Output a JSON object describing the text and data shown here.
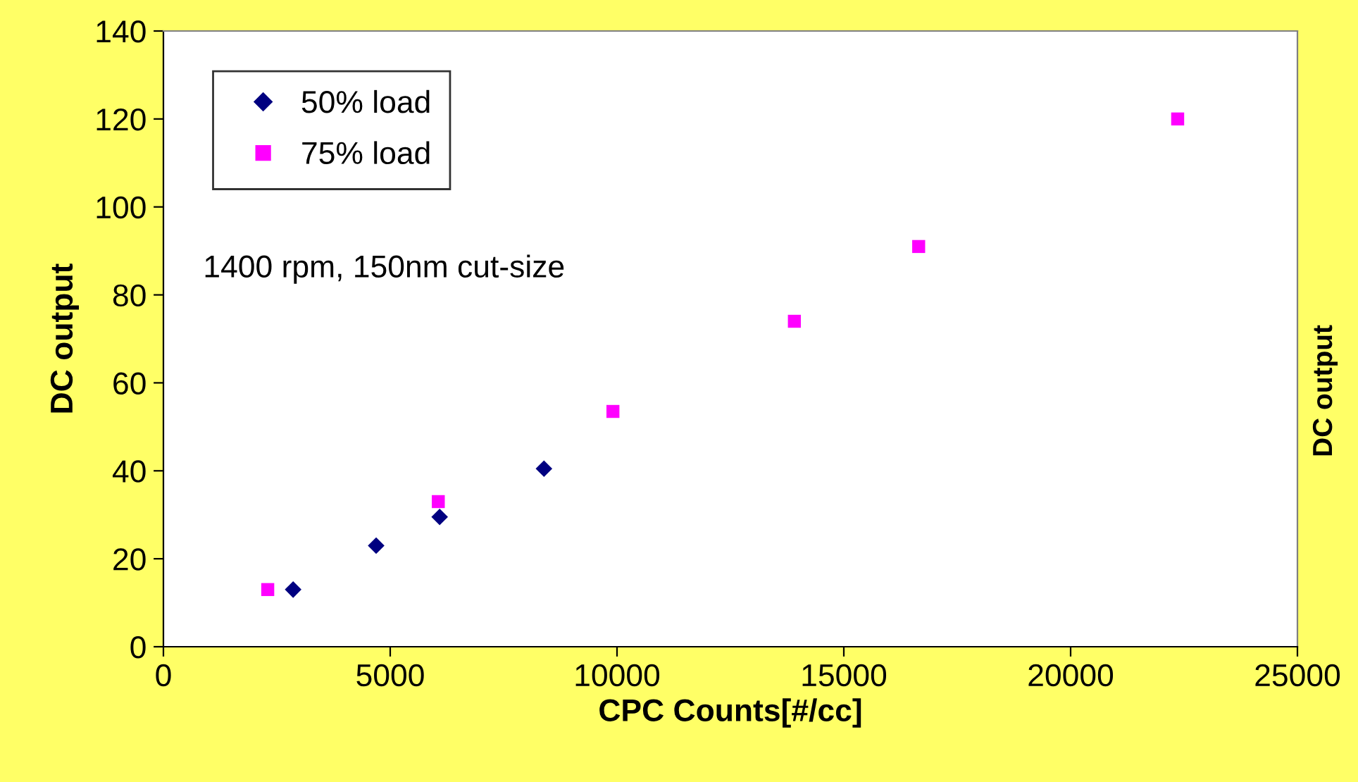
{
  "chart_data": {
    "type": "scatter",
    "xlabel": "CPC Counts[#/cc]",
    "ylabel": "DC output",
    "series": [
      {
        "name": "50% load",
        "color": "#000080",
        "marker": "diamond",
        "x": [
          2860,
          4690,
          6090,
          8390
        ],
        "values": [
          13,
          23,
          29.5,
          40.5
        ]
      },
      {
        "name": "75% load",
        "color": "#ff00ff",
        "marker": "square",
        "x": [
          2300,
          6060,
          9910,
          13910,
          16650,
          22360
        ],
        "values": [
          13,
          33,
          53.5,
          74,
          91,
          120
        ]
      }
    ],
    "xlim": [
      0,
      25000
    ],
    "xticks": [
      0,
      5000,
      10000,
      15000,
      20000,
      25000
    ],
    "ylim": [
      0,
      140
    ],
    "yticks": [
      0,
      20,
      40,
      60,
      80,
      100,
      120,
      140
    ],
    "grid": false,
    "legend": "top left",
    "annotations": [
      "1400 rpm, 150nm cut-size",
      "DC output"
    ]
  }
}
